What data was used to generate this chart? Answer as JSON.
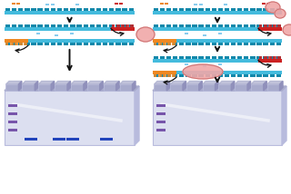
{
  "bg_color": "#ffffff",
  "cyan_color": "#44bbdd",
  "cyan_dark": "#1188aa",
  "orange_color": "#ee8822",
  "red_color": "#cc2222",
  "blue_band": "#2244bb",
  "purple_band": "#7755aa",
  "gel_fill": "#dcdff0",
  "gel_side": "#b8bbdd",
  "gel_top_color": "#a8abcc",
  "gel_tooth_side": "#9090bb",
  "arrow_color": "#111111",
  "enzyme_fill": "#f0a8a8",
  "enzyme_edge": "#cc7070",
  "dot_cyan": "#88ccee"
}
